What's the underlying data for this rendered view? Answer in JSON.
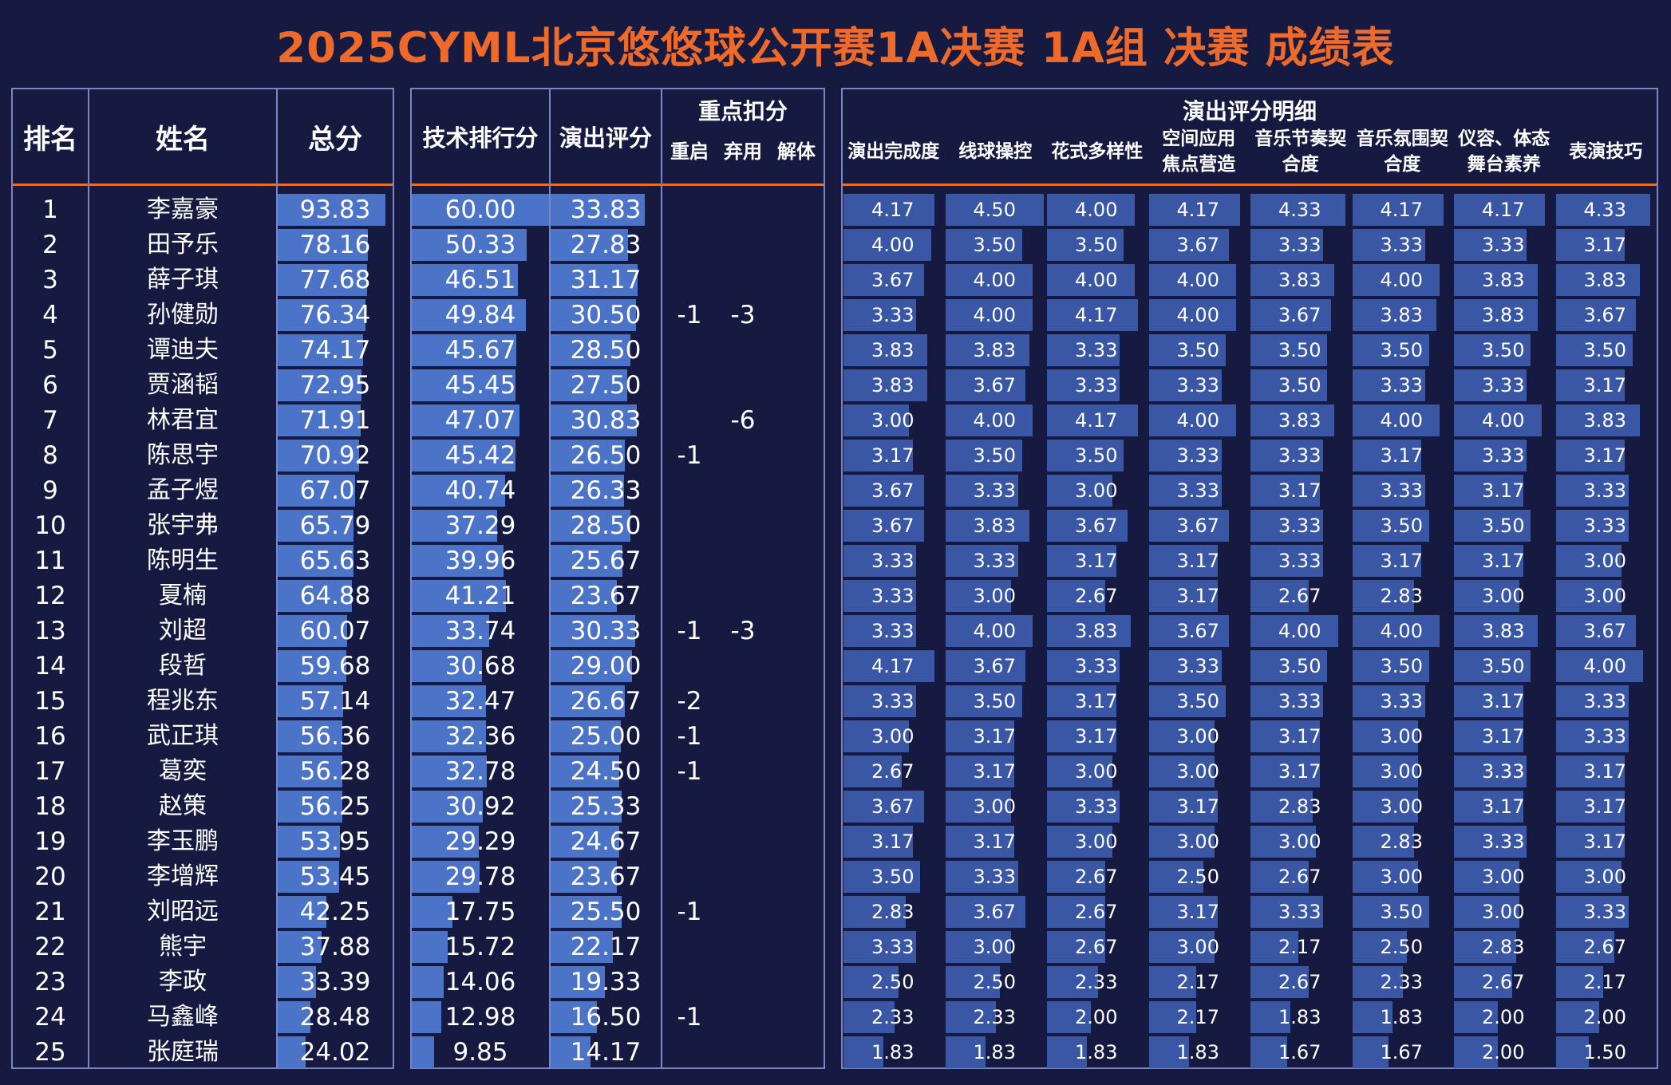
{
  "title": "2025CYML北京悠悠球公开赛1A决赛 1A组 决赛 成绩表",
  "headers": {
    "rank": "排名",
    "name": "姓名",
    "total": "总分",
    "tech": "技术排行分",
    "perf": "演出评分",
    "deduction": "重点扣分",
    "deduction_sub": [
      "重启",
      "弃用",
      "解体"
    ],
    "detail": "演出评分明细",
    "detail_cols": [
      [
        "演出完成度"
      ],
      [
        "线球操控"
      ],
      [
        "花式多样性"
      ],
      [
        "空间应用",
        "焦点营造"
      ],
      [
        "音乐节奏契",
        "合度"
      ],
      [
        "音乐氛围契",
        "合度"
      ],
      [
        "仪容、体态",
        "舞台素养"
      ],
      [
        "表演技巧"
      ]
    ]
  },
  "colors": {
    "background": "#161a41",
    "title": "#ee6a2a",
    "bar": "#3957a4",
    "divider": "#e3712c",
    "border": "#7c85c4"
  },
  "rows": [
    {
      "rank": "1",
      "name": "李嘉豪",
      "total": "93.83",
      "tech": "60.00",
      "perf": "33.83",
      "restart": "",
      "discard": "",
      "breakup": "",
      "details": [
        "4.17",
        "4.50",
        "4.00",
        "4.17",
        "4.33",
        "4.17",
        "4.17",
        "4.33"
      ]
    },
    {
      "rank": "2",
      "name": "田予乐",
      "total": "78.16",
      "tech": "50.33",
      "perf": "27.83",
      "restart": "",
      "discard": "",
      "breakup": "",
      "details": [
        "4.00",
        "3.50",
        "3.50",
        "3.67",
        "3.33",
        "3.33",
        "3.33",
        "3.17"
      ]
    },
    {
      "rank": "3",
      "name": "薛子琪",
      "total": "77.68",
      "tech": "46.51",
      "perf": "31.17",
      "restart": "",
      "discard": "",
      "breakup": "",
      "details": [
        "3.67",
        "4.00",
        "4.00",
        "4.00",
        "3.83",
        "4.00",
        "3.83",
        "3.83"
      ]
    },
    {
      "rank": "4",
      "name": "孙健勋",
      "total": "76.34",
      "tech": "49.84",
      "perf": "30.50",
      "restart": "-1",
      "discard": "-3",
      "breakup": "",
      "details": [
        "3.33",
        "4.00",
        "4.17",
        "4.00",
        "3.67",
        "3.83",
        "3.83",
        "3.67"
      ]
    },
    {
      "rank": "5",
      "name": "谭迪夫",
      "total": "74.17",
      "tech": "45.67",
      "perf": "28.50",
      "restart": "",
      "discard": "",
      "breakup": "",
      "details": [
        "3.83",
        "3.83",
        "3.33",
        "3.50",
        "3.50",
        "3.50",
        "3.50",
        "3.50"
      ]
    },
    {
      "rank": "6",
      "name": "贾涵韬",
      "total": "72.95",
      "tech": "45.45",
      "perf": "27.50",
      "restart": "",
      "discard": "",
      "breakup": "",
      "details": [
        "3.83",
        "3.67",
        "3.33",
        "3.33",
        "3.50",
        "3.33",
        "3.33",
        "3.17"
      ]
    },
    {
      "rank": "7",
      "name": "林君宜",
      "total": "71.91",
      "tech": "47.07",
      "perf": "30.83",
      "restart": "",
      "discard": "-6",
      "breakup": "",
      "details": [
        "3.00",
        "4.00",
        "4.17",
        "4.00",
        "3.83",
        "4.00",
        "4.00",
        "3.83"
      ]
    },
    {
      "rank": "8",
      "name": "陈思宇",
      "total": "70.92",
      "tech": "45.42",
      "perf": "26.50",
      "restart": "-1",
      "discard": "",
      "breakup": "",
      "details": [
        "3.17",
        "3.50",
        "3.50",
        "3.33",
        "3.33",
        "3.17",
        "3.33",
        "3.17"
      ]
    },
    {
      "rank": "9",
      "name": "孟子煜",
      "total": "67.07",
      "tech": "40.74",
      "perf": "26.33",
      "restart": "",
      "discard": "",
      "breakup": "",
      "details": [
        "3.67",
        "3.33",
        "3.00",
        "3.33",
        "3.17",
        "3.33",
        "3.17",
        "3.33"
      ]
    },
    {
      "rank": "10",
      "name": "张宇弗",
      "total": "65.79",
      "tech": "37.29",
      "perf": "28.50",
      "restart": "",
      "discard": "",
      "breakup": "",
      "details": [
        "3.67",
        "3.83",
        "3.67",
        "3.67",
        "3.33",
        "3.50",
        "3.50",
        "3.33"
      ]
    },
    {
      "rank": "11",
      "name": "陈明生",
      "total": "65.63",
      "tech": "39.96",
      "perf": "25.67",
      "restart": "",
      "discard": "",
      "breakup": "",
      "details": [
        "3.33",
        "3.33",
        "3.17",
        "3.17",
        "3.33",
        "3.17",
        "3.17",
        "3.00"
      ]
    },
    {
      "rank": "12",
      "name": "夏楠",
      "total": "64.88",
      "tech": "41.21",
      "perf": "23.67",
      "restart": "",
      "discard": "",
      "breakup": "",
      "details": [
        "3.33",
        "3.00",
        "2.67",
        "3.17",
        "2.67",
        "2.83",
        "3.00",
        "3.00"
      ]
    },
    {
      "rank": "13",
      "name": "刘超",
      "total": "60.07",
      "tech": "33.74",
      "perf": "30.33",
      "restart": "-1",
      "discard": "-3",
      "breakup": "",
      "details": [
        "3.33",
        "4.00",
        "3.83",
        "3.67",
        "4.00",
        "4.00",
        "3.83",
        "3.67"
      ]
    },
    {
      "rank": "14",
      "name": "段哲",
      "total": "59.68",
      "tech": "30.68",
      "perf": "29.00",
      "restart": "",
      "discard": "",
      "breakup": "",
      "details": [
        "4.17",
        "3.67",
        "3.33",
        "3.33",
        "3.50",
        "3.50",
        "3.50",
        "4.00"
      ]
    },
    {
      "rank": "15",
      "name": "程兆东",
      "total": "57.14",
      "tech": "32.47",
      "perf": "26.67",
      "restart": "-2",
      "discard": "",
      "breakup": "",
      "details": [
        "3.33",
        "3.50",
        "3.17",
        "3.50",
        "3.33",
        "3.33",
        "3.17",
        "3.33"
      ]
    },
    {
      "rank": "16",
      "name": "武正琪",
      "total": "56.36",
      "tech": "32.36",
      "perf": "25.00",
      "restart": "-1",
      "discard": "",
      "breakup": "",
      "details": [
        "3.00",
        "3.17",
        "3.17",
        "3.00",
        "3.17",
        "3.00",
        "3.17",
        "3.33"
      ]
    },
    {
      "rank": "17",
      "name": "葛奕",
      "total": "56.28",
      "tech": "32.78",
      "perf": "24.50",
      "restart": "-1",
      "discard": "",
      "breakup": "",
      "details": [
        "2.67",
        "3.17",
        "3.00",
        "3.00",
        "3.17",
        "3.00",
        "3.33",
        "3.17"
      ]
    },
    {
      "rank": "18",
      "name": "赵策",
      "total": "56.25",
      "tech": "30.92",
      "perf": "25.33",
      "restart": "",
      "discard": "",
      "breakup": "",
      "details": [
        "3.67",
        "3.00",
        "3.33",
        "3.17",
        "2.83",
        "3.00",
        "3.17",
        "3.17"
      ]
    },
    {
      "rank": "19",
      "name": "李玉鹏",
      "total": "53.95",
      "tech": "29.29",
      "perf": "24.67",
      "restart": "",
      "discard": "",
      "breakup": "",
      "details": [
        "3.17",
        "3.17",
        "3.00",
        "3.00",
        "3.00",
        "2.83",
        "3.33",
        "3.17"
      ]
    },
    {
      "rank": "20",
      "name": "李增辉",
      "total": "53.45",
      "tech": "29.78",
      "perf": "23.67",
      "restart": "",
      "discard": "",
      "breakup": "",
      "details": [
        "3.50",
        "3.33",
        "2.67",
        "2.50",
        "2.67",
        "3.00",
        "3.00",
        "3.00"
      ]
    },
    {
      "rank": "21",
      "name": "刘昭远",
      "total": "42.25",
      "tech": "17.75",
      "perf": "25.50",
      "restart": "-1",
      "discard": "",
      "breakup": "",
      "details": [
        "2.83",
        "3.67",
        "2.67",
        "3.17",
        "3.33",
        "3.50",
        "3.00",
        "3.33"
      ]
    },
    {
      "rank": "22",
      "name": "熊宇",
      "total": "37.88",
      "tech": "15.72",
      "perf": "22.17",
      "restart": "",
      "discard": "",
      "breakup": "",
      "details": [
        "3.33",
        "3.00",
        "2.67",
        "3.00",
        "2.17",
        "2.50",
        "2.83",
        "2.67"
      ]
    },
    {
      "rank": "23",
      "name": "李政",
      "total": "33.39",
      "tech": "14.06",
      "perf": "19.33",
      "restart": "",
      "discard": "",
      "breakup": "",
      "details": [
        "2.50",
        "2.50",
        "2.33",
        "2.17",
        "2.67",
        "2.33",
        "2.67",
        "2.17"
      ]
    },
    {
      "rank": "24",
      "name": "马鑫峰",
      "total": "28.48",
      "tech": "12.98",
      "perf": "16.50",
      "restart": "-1",
      "discard": "",
      "breakup": "",
      "details": [
        "2.33",
        "2.33",
        "2.00",
        "2.17",
        "1.83",
        "1.83",
        "2.00",
        "2.00"
      ]
    },
    {
      "rank": "25",
      "name": "张庭瑞",
      "total": "24.02",
      "tech": "9.85",
      "perf": "14.17",
      "restart": "",
      "discard": "",
      "breakup": "",
      "details": [
        "1.83",
        "1.83",
        "1.83",
        "1.83",
        "1.67",
        "1.67",
        "2.00",
        "1.50"
      ]
    }
  ]
}
